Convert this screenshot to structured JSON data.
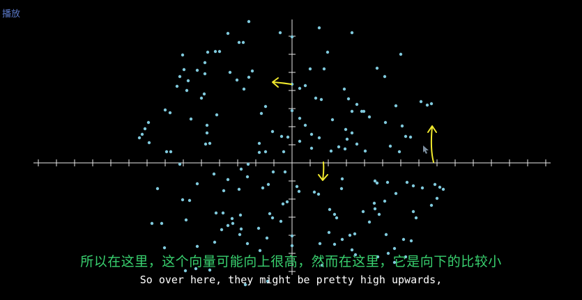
{
  "player": {
    "play_label": "播放"
  },
  "subtitles": {
    "chinese": "所以在这里，这个向量可能向上很高，然而在这里，它是向下的比较小",
    "english": "So over here, they might be pretty high upwards,"
  },
  "colors": {
    "background": "#000000",
    "point": "#7fc9dc",
    "axis": "#e8e8e8",
    "arrow": "#f2ea2e",
    "subtitle_cn": "#39d16f",
    "subtitle_en": "#ffffff",
    "play_label": "#5b79c9"
  },
  "icons": {
    "cursor": "mouse-pointer-icon"
  }
}
